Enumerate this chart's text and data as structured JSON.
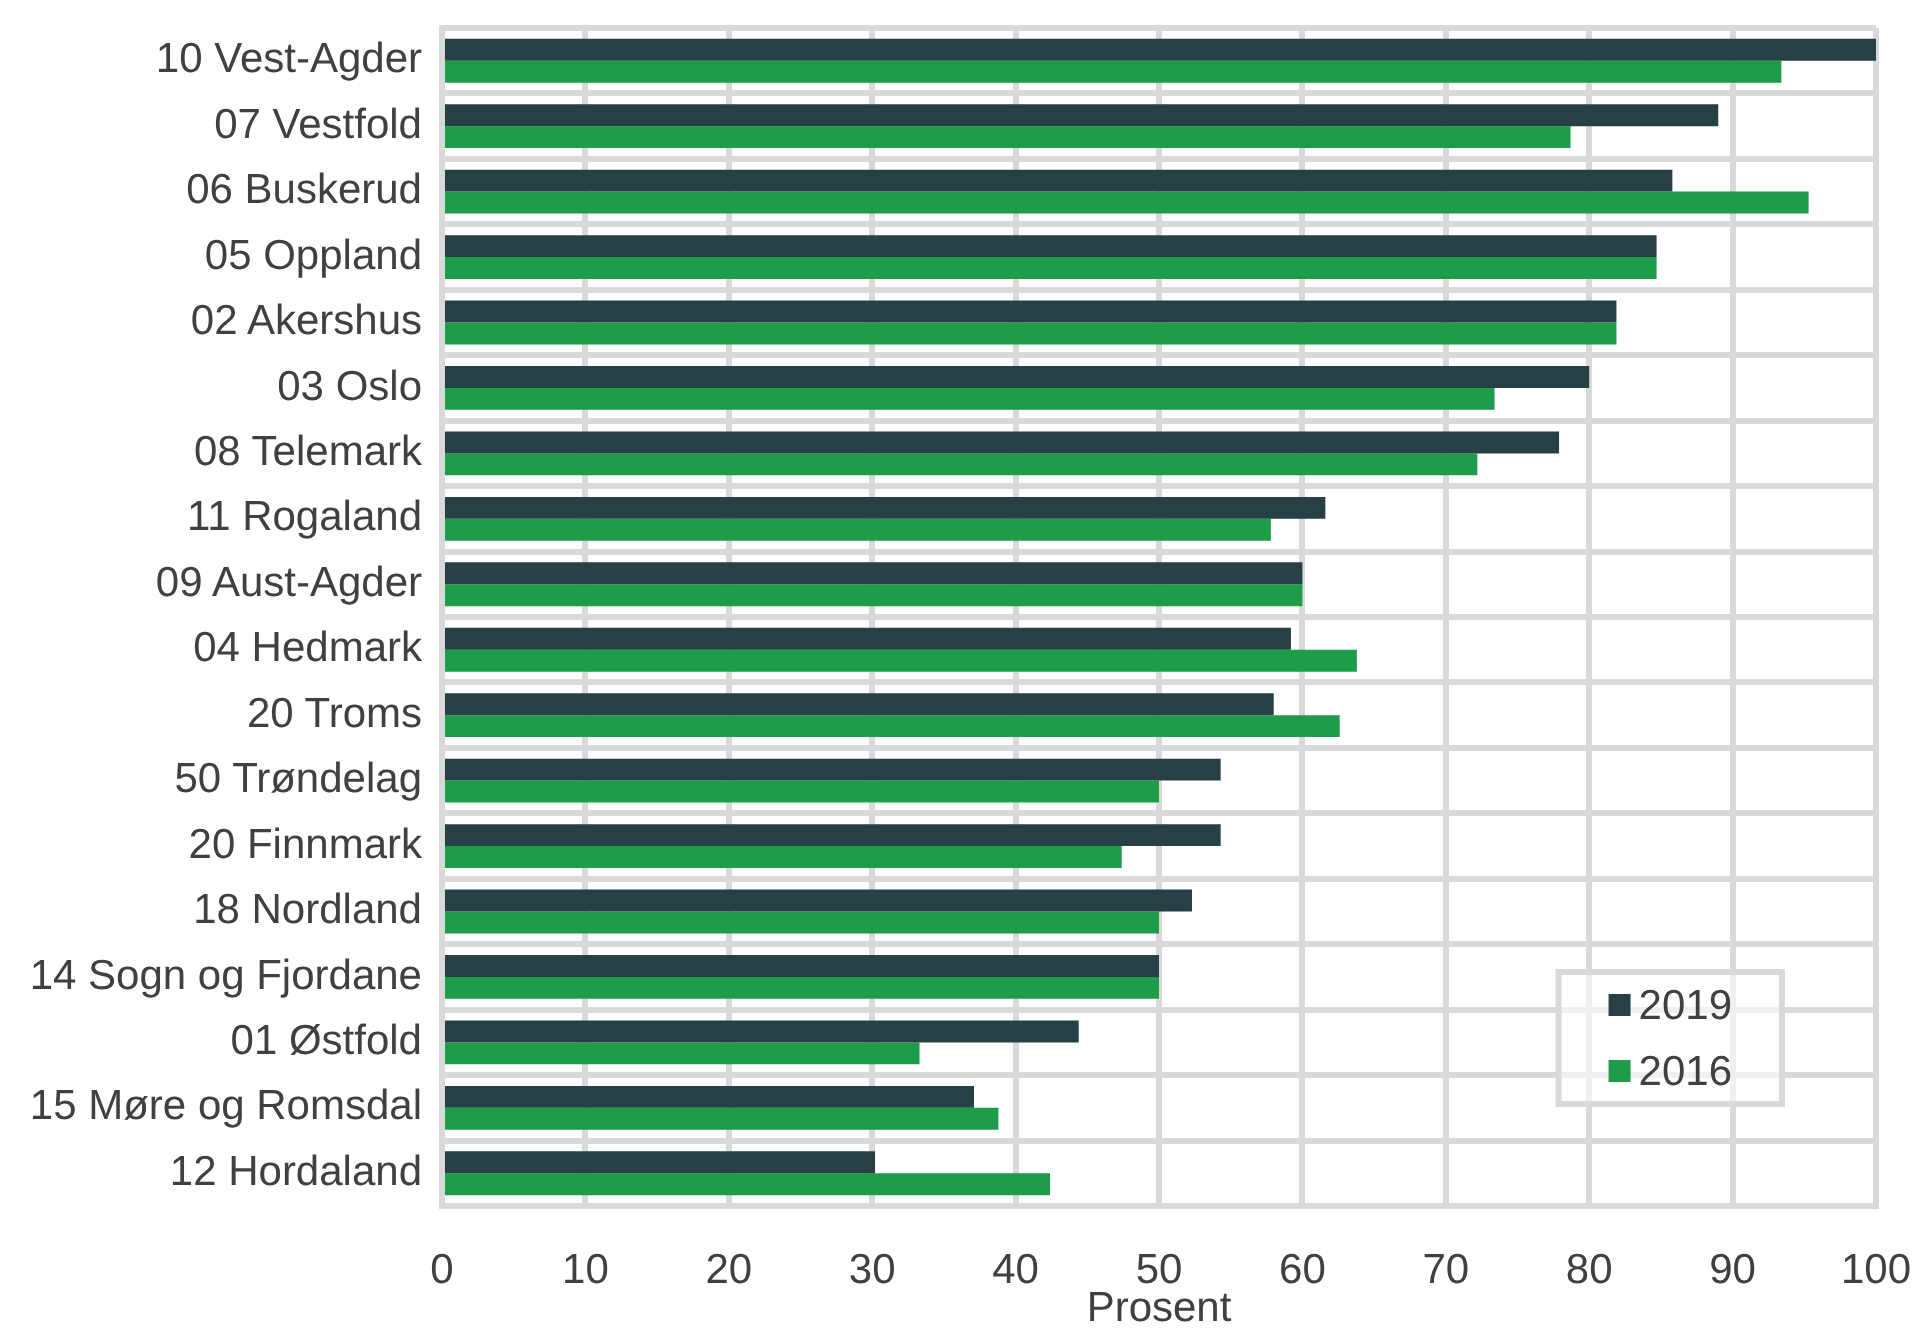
{
  "chart_data": {
    "type": "bar",
    "orientation": "horizontal",
    "xlabel": "Prosent",
    "categories": [
      "10 Vest-Agder",
      "07 Vestfold",
      "06 Buskerud",
      "05 Oppland",
      "02 Akershus",
      "03 Oslo",
      "08 Telemark",
      "11 Rogaland",
      "09 Aust-Agder",
      "04 Hedmark",
      "20 Troms",
      "50 Trøndelag",
      "20 Finnmark",
      "18 Nordland",
      "14 Sogn og Fjordane",
      "01 Østfold",
      "15 Møre og Romsdal",
      "12 Hordaland"
    ],
    "series": [
      {
        "name": "2019",
        "color": "#264045",
        "values": [
          100,
          89.0,
          85.8,
          84.7,
          81.9,
          80.0,
          77.9,
          61.6,
          60.0,
          59.2,
          58.0,
          54.3,
          54.3,
          52.3,
          50.0,
          44.4,
          37.1,
          30.2
        ]
      },
      {
        "name": "2016",
        "color": "#1d9d4a",
        "values": [
          93.4,
          78.7,
          95.3,
          84.7,
          81.9,
          73.4,
          72.2,
          57.8,
          60.0,
          63.8,
          62.6,
          50.0,
          47.4,
          50.0,
          50.0,
          33.3,
          38.8,
          42.4
        ]
      }
    ],
    "xlim": [
      0,
      100
    ],
    "xticks": [
      0,
      10,
      20,
      30,
      40,
      50,
      60,
      70,
      80,
      90,
      100
    ],
    "grid": true,
    "legend": "bottom right"
  }
}
